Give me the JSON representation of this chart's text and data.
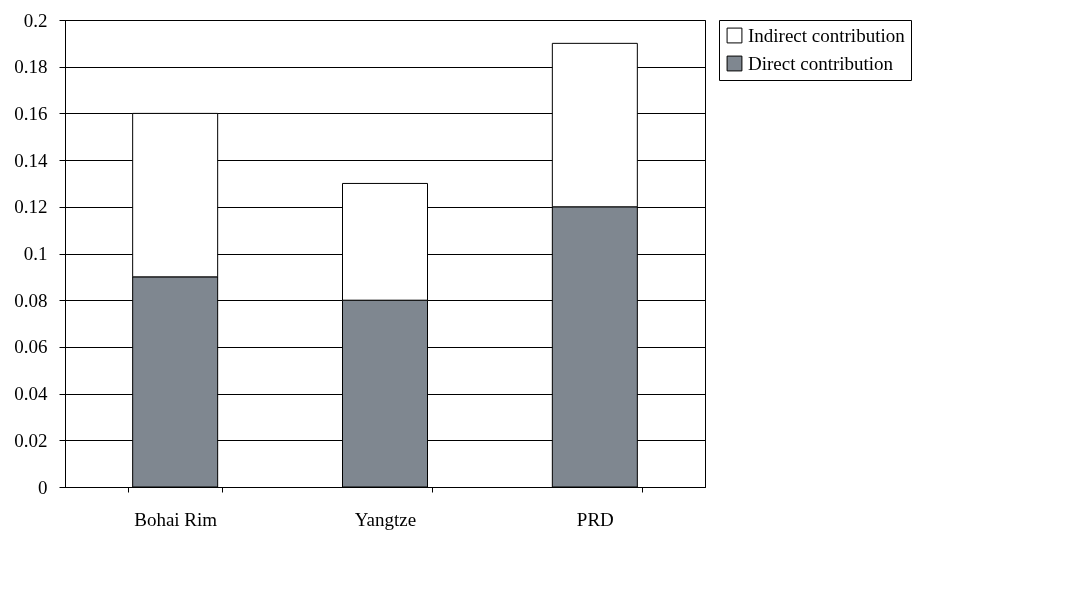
{
  "chart_data": {
    "type": "bar",
    "stacked": true,
    "categories": [
      "Bohai Rim",
      "Yangtze",
      "PRD"
    ],
    "series": [
      {
        "name": "Direct contribution",
        "color": "#7f8790",
        "values": [
          0.09,
          0.08,
          0.12
        ]
      },
      {
        "name": "Indirect contribution",
        "color": "#ffffff",
        "values": [
          0.07,
          0.05,
          0.07
        ]
      }
    ],
    "ylim": [
      0,
      0.2
    ],
    "yticks": [
      0,
      0.02,
      0.04,
      0.06,
      0.08,
      0.1,
      0.12,
      0.14,
      0.16,
      0.18,
      0.2
    ],
    "grid": "y",
    "legend": "right"
  }
}
